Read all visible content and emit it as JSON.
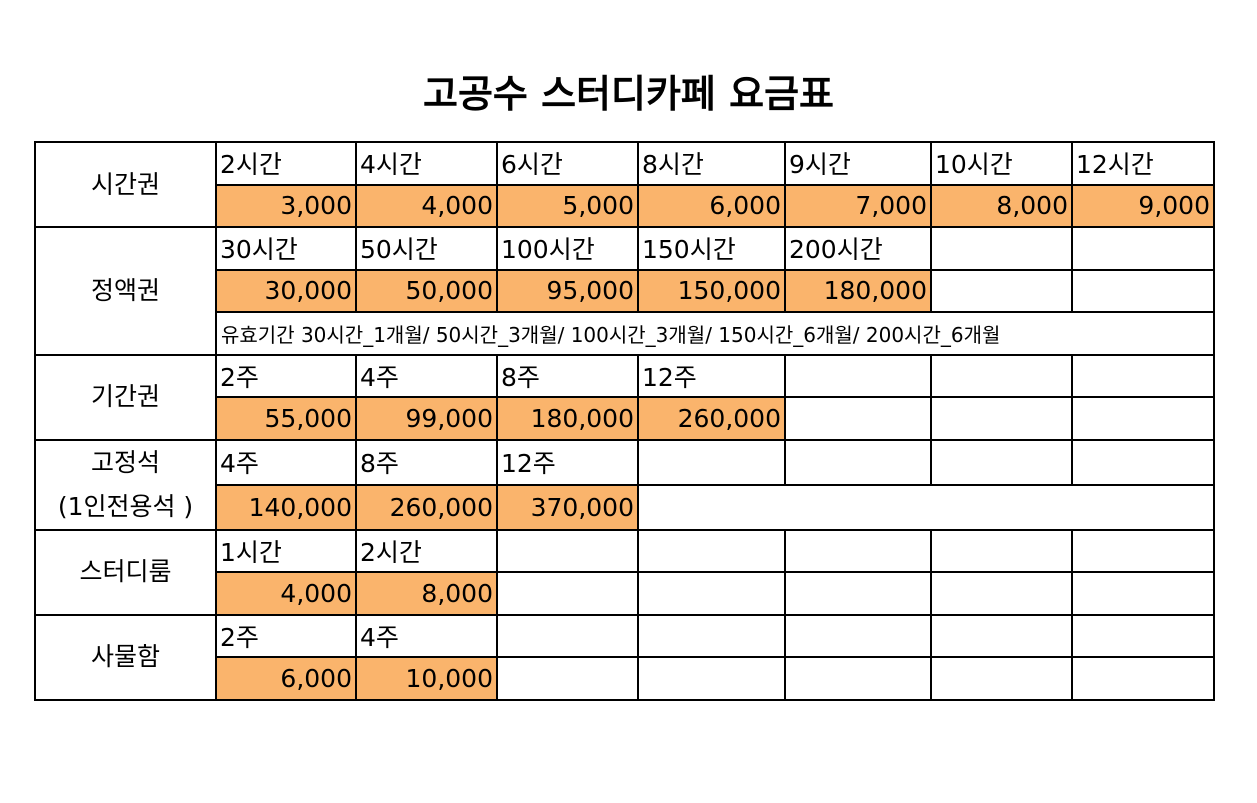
{
  "title": "고공수 스터디카페 요금표",
  "groups": [
    {
      "label": [
        "시간권"
      ],
      "durations": [
        "2시간",
        "4시간",
        "6시간",
        "8시간",
        "9시간",
        "10시간",
        "12시간"
      ],
      "prices": [
        "3,000",
        "4,000",
        "5,000",
        "6,000",
        "7,000",
        "8,000",
        "9,000"
      ]
    },
    {
      "label": [
        "정액권"
      ],
      "durations": [
        "30시간",
        "50시간",
        "100시간",
        "150시간",
        "200시간"
      ],
      "prices": [
        "30,000",
        "50,000",
        "95,000",
        "150,000",
        "180,000"
      ],
      "note": "유효기간 30시간_1개월/ 50시간_3개월/ 100시간_3개월/ 150시간_6개월/ 200시간_6개월"
    },
    {
      "label": [
        "기간권"
      ],
      "durations": [
        "2주",
        "4주",
        "8주",
        "12주"
      ],
      "prices": [
        "55,000",
        "99,000",
        "180,000",
        "260,000"
      ]
    },
    {
      "label": [
        "고정석",
        "(1인전용석 )"
      ],
      "durations": [
        "4주",
        "8주",
        "12주"
      ],
      "prices": [
        "140,000",
        "260,000",
        "370,000"
      ]
    },
    {
      "label": [
        "스터디룸"
      ],
      "durations": [
        "1시간",
        "2시간"
      ],
      "prices": [
        "4,000",
        "8,000"
      ]
    },
    {
      "label": [
        "사물함"
      ],
      "durations": [
        "2주",
        "4주"
      ],
      "prices": [
        "6,000",
        "10,000"
      ]
    }
  ]
}
